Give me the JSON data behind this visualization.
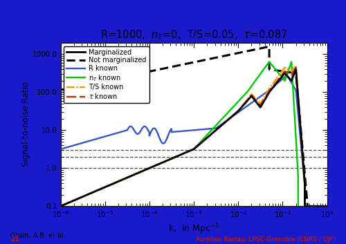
{
  "title": "R=1000,  $n_T$=0,  T/S=0.05,  $\\tau$=0.087",
  "xlabel": "k,  in Mpc$^{-1}$",
  "ylabel": "Signal-to-noise Ratio",
  "bg_outer": "#1a1acc",
  "bg_inner": "#ffffff",
  "footer_left": "Grain, A.B. et al.",
  "footer_right": "Aurélien Barrau, LPSC-Grenoble (CNRS / UJF)",
  "footer_page": "21",
  "hline_values": [
    1.0,
    2.0,
    3.0
  ]
}
